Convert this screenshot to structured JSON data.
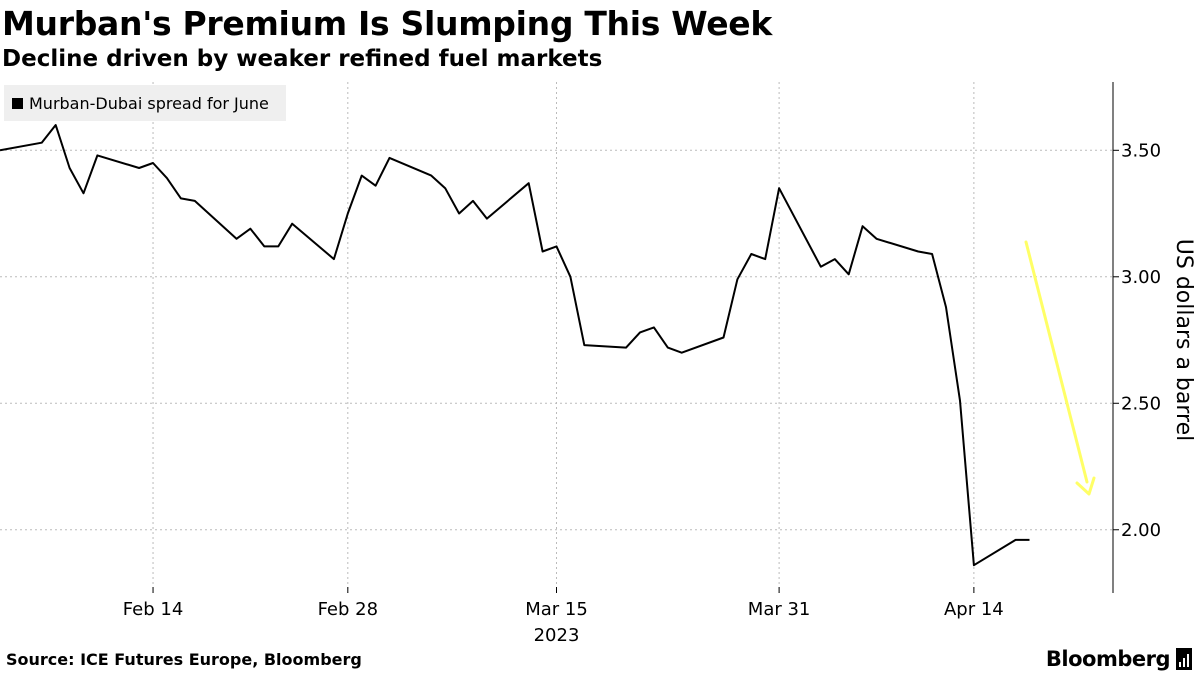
{
  "title": "Murban's Premium Is Slumping This Week",
  "subtitle": "Decline driven by weaker refined fuel markets",
  "source": "Source: ICE Futures Europe, Bloomberg",
  "brand": "Bloomberg",
  "colors": {
    "line": "#000000",
    "grid": "#bbbbbb",
    "arrow": "#ffff66",
    "legend_bg": "#efefef"
  },
  "chart_data": {
    "type": "line",
    "title": "Murban's Premium Is Slumping This Week",
    "subtitle": "Decline driven by weaker refined fuel markets",
    "ylabel": "US dollars a barrel",
    "xlabel": "",
    "year_label": "2023",
    "legend_position": "top-left",
    "grid": true,
    "xlim": [
      "2023-02-03",
      "2023-04-24"
    ],
    "ylim": [
      1.75,
      3.77
    ],
    "yticks": [
      2.0,
      2.5,
      3.0,
      3.5
    ],
    "ytick_labels": [
      "2.00",
      "2.50",
      "3.00",
      "3.50"
    ],
    "xticks": [
      "2023-02-14",
      "2023-02-28",
      "2023-03-15",
      "2023-03-31",
      "2023-04-14"
    ],
    "xtick_labels": [
      "Feb 14",
      "Feb 28",
      "Mar 15",
      "Mar 31",
      "Apr 14"
    ],
    "annotation": "downward-arrow",
    "series": [
      {
        "name": "Murban-Dubai spread for June",
        "x": [
          "2023-02-03",
          "2023-02-06",
          "2023-02-07",
          "2023-02-08",
          "2023-02-09",
          "2023-02-10",
          "2023-02-13",
          "2023-02-14",
          "2023-02-15",
          "2023-02-16",
          "2023-02-17",
          "2023-02-20",
          "2023-02-21",
          "2023-02-22",
          "2023-02-23",
          "2023-02-24",
          "2023-02-27",
          "2023-02-28",
          "2023-03-01",
          "2023-03-02",
          "2023-03-03",
          "2023-03-06",
          "2023-03-07",
          "2023-03-08",
          "2023-03-09",
          "2023-03-10",
          "2023-03-13",
          "2023-03-14",
          "2023-03-15",
          "2023-03-16",
          "2023-03-17",
          "2023-03-20",
          "2023-03-21",
          "2023-03-22",
          "2023-03-23",
          "2023-03-24",
          "2023-03-27",
          "2023-03-28",
          "2023-03-29",
          "2023-03-30",
          "2023-03-31",
          "2023-04-03",
          "2023-04-04",
          "2023-04-05",
          "2023-04-06",
          "2023-04-07",
          "2023-04-10",
          "2023-04-11",
          "2023-04-12",
          "2023-04-13",
          "2023-04-14",
          "2023-04-17",
          "2023-04-18"
        ],
        "values": [
          3.5,
          3.53,
          3.6,
          3.43,
          3.33,
          3.48,
          3.43,
          3.45,
          3.39,
          3.31,
          3.3,
          3.15,
          3.19,
          3.12,
          3.12,
          3.21,
          3.07,
          3.25,
          3.4,
          3.36,
          3.47,
          3.4,
          3.35,
          3.25,
          3.3,
          3.23,
          3.37,
          3.1,
          3.12,
          3.0,
          2.73,
          2.72,
          2.78,
          2.8,
          2.72,
          2.7,
          2.76,
          2.99,
          3.09,
          3.07,
          3.35,
          3.04,
          3.07,
          3.01,
          3.2,
          3.15,
          3.1,
          3.09,
          2.88,
          2.51,
          1.86,
          1.96,
          1.96
        ]
      }
    ]
  }
}
